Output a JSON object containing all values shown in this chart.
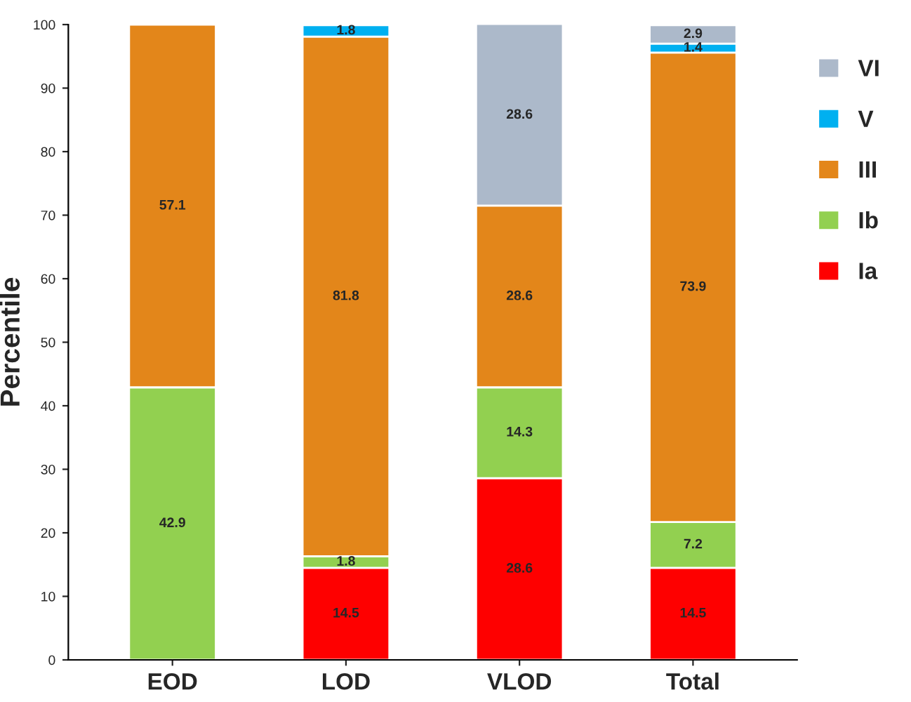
{
  "chart_data": {
    "type": "bar",
    "stacked": true,
    "ylabel": "Percentile",
    "categories": [
      "EOD",
      "LOD",
      "VLOD",
      "Total"
    ],
    "series": [
      {
        "name": "Ia",
        "color": "#fe0000",
        "values": [
          null,
          14.5,
          28.6,
          14.5
        ]
      },
      {
        "name": "Ib",
        "color": "#92d050",
        "values": [
          42.9,
          1.8,
          14.3,
          7.2
        ]
      },
      {
        "name": "III",
        "color": "#e3861a",
        "values": [
          57.1,
          81.8,
          28.6,
          73.9
        ]
      },
      {
        "name": "V",
        "color": "#00b0f0",
        "values": [
          null,
          1.8,
          null,
          1.4
        ]
      },
      {
        "name": "VI",
        "color": "#acb9ca",
        "values": [
          null,
          null,
          28.6,
          2.9
        ]
      }
    ],
    "ylim": [
      0,
      100
    ],
    "yticks": [
      0,
      10,
      20,
      30,
      40,
      50,
      60,
      70,
      80,
      90,
      100
    ],
    "data_labels": true,
    "grid": false,
    "legend": "right"
  }
}
